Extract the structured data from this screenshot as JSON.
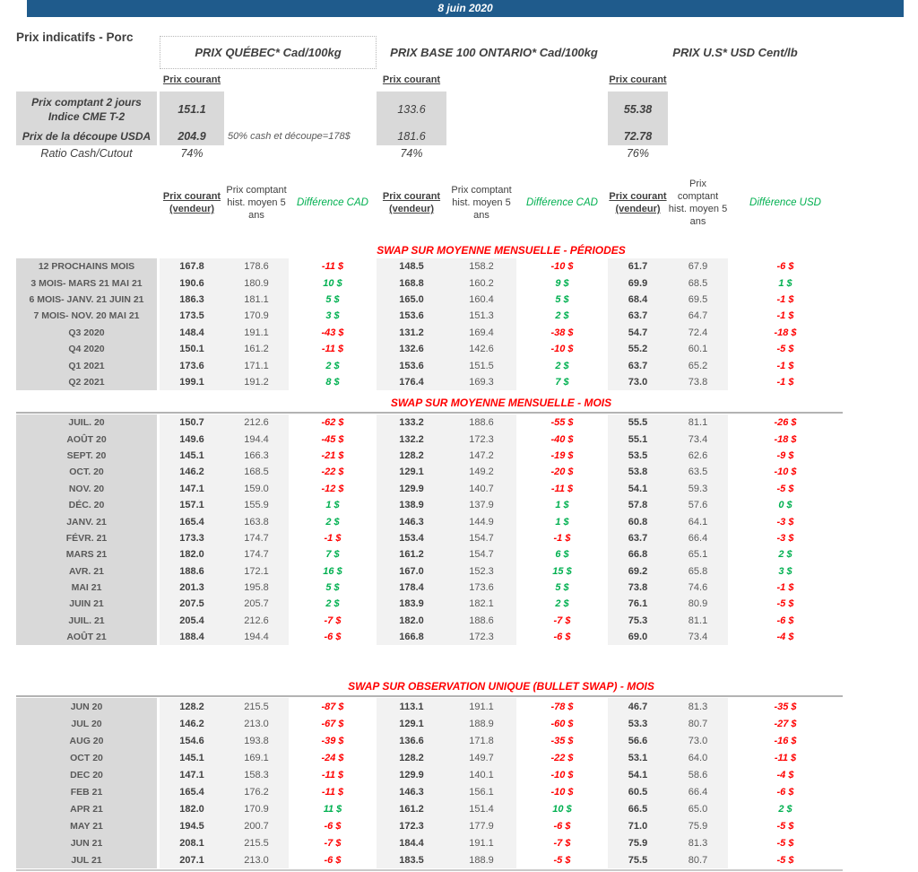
{
  "banner": {
    "date": "8 juin 2020",
    "bg_color": "#1f5b8c"
  },
  "page_title": "Prix indicatifs - Porc",
  "groups": [
    {
      "title": "PRIX QUÉBEC* Cad/100kg"
    },
    {
      "title": "PRIX BASE 100 ONTARIO* Cad/100kg"
    },
    {
      "title": "PRIX U.S* USD Cent/lb"
    }
  ],
  "spot": {
    "col_header": "Prix courant",
    "rows": [
      {
        "label_line1": "Prix comptant 2 jours",
        "label_line2": "Indice CME T-2",
        "quebec": "151.1",
        "ontario": "133.6",
        "us": "55.38"
      },
      {
        "label": "Prix de la découpe USDA",
        "note": "50% cash et découpe=178$",
        "quebec": "204.9",
        "ontario": "181.6",
        "us": "72.78"
      },
      {
        "label": "Ratio Cash/Cutout",
        "quebec": "74%",
        "ontario": "74%",
        "us": "76%"
      }
    ]
  },
  "column_headers": {
    "prix_courant_vendeur": "Prix courant (vendeur)",
    "prix_comptant_hist": "Prix comptant hist. moyen 5 ans",
    "difference_cad": "Différence CAD",
    "difference_usd": "Différence USD"
  },
  "colors": {
    "red": "#ff0000",
    "green": "#00b050",
    "label_bg": "#d9d9d9",
    "band_bg": "#f2f2f2"
  },
  "sections": [
    {
      "title": "SWAP SUR MOYENNE MENSUELLE - PÉRIODES",
      "rule_below": false,
      "rows": [
        [
          "12 PROCHAINS MOIS",
          "167.8",
          "178.6",
          "-11 $",
          "148.5",
          "158.2",
          "-10 $",
          "61.7",
          "67.9",
          "-6 $"
        ],
        [
          "3 MOIS- MARS 21 MAI 21",
          "190.6",
          "180.9",
          "10 $",
          "168.8",
          "160.2",
          "9 $",
          "69.9",
          "68.5",
          "1 $"
        ],
        [
          "6 MOIS- JANV. 21 JUIN 21",
          "186.3",
          "181.1",
          "5 $",
          "165.0",
          "160.4",
          "5 $",
          "68.4",
          "69.5",
          "-1 $"
        ],
        [
          "7 MOIS- NOV. 20 MAI 21",
          "173.5",
          "170.9",
          "3 $",
          "153.6",
          "151.3",
          "2 $",
          "63.7",
          "64.7",
          "-1 $"
        ],
        [
          "Q3 2020",
          "148.4",
          "191.1",
          "-43 $",
          "131.2",
          "169.4",
          "-38 $",
          "54.7",
          "72.4",
          "-18 $"
        ],
        [
          "Q4 2020",
          "150.1",
          "161.2",
          "-11 $",
          "132.6",
          "142.6",
          "-10 $",
          "55.2",
          "60.1",
          "-5 $"
        ],
        [
          "Q1 2021",
          "173.6",
          "171.1",
          "2 $",
          "153.6",
          "151.5",
          "2 $",
          "63.7",
          "65.2",
          "-1 $"
        ],
        [
          "Q2 2021",
          "199.1",
          "191.2",
          "8 $",
          "176.4",
          "169.3",
          "7 $",
          "73.0",
          "73.8",
          "-1 $"
        ]
      ]
    },
    {
      "title": "SWAP SUR MOYENNE MENSUELLE - MOIS",
      "rule_below": true,
      "rows": [
        [
          "JUIL. 20",
          "150.7",
          "212.6",
          "-62 $",
          "133.2",
          "188.6",
          "-55 $",
          "55.5",
          "81.1",
          "-26 $"
        ],
        [
          "AOÛT 20",
          "149.6",
          "194.4",
          "-45 $",
          "132.2",
          "172.3",
          "-40 $",
          "55.1",
          "73.4",
          "-18 $"
        ],
        [
          "SEPT. 20",
          "145.1",
          "166.3",
          "-21 $",
          "128.2",
          "147.2",
          "-19 $",
          "53.5",
          "62.6",
          "-9 $"
        ],
        [
          "OCT. 20",
          "146.2",
          "168.5",
          "-22 $",
          "129.1",
          "149.2",
          "-20 $",
          "53.8",
          "63.5",
          "-10 $"
        ],
        [
          "NOV. 20",
          "147.1",
          "159.0",
          "-12 $",
          "129.9",
          "140.7",
          "-11 $",
          "54.1",
          "59.3",
          "-5 $"
        ],
        [
          "DÉC. 20",
          "157.1",
          "155.9",
          "1 $",
          "138.9",
          "137.9",
          "1 $",
          "57.8",
          "57.6",
          "0 $"
        ],
        [
          "JANV. 21",
          "165.4",
          "163.8",
          "2 $",
          "146.3",
          "144.9",
          "1 $",
          "60.8",
          "64.1",
          "-3 $"
        ],
        [
          "FÉVR. 21",
          "173.3",
          "174.7",
          "-1 $",
          "153.4",
          "154.7",
          "-1 $",
          "63.7",
          "66.4",
          "-3 $"
        ],
        [
          "MARS 21",
          "182.0",
          "174.7",
          "7 $",
          "161.2",
          "154.7",
          "6 $",
          "66.8",
          "65.1",
          "2 $"
        ],
        [
          "AVR. 21",
          "188.6",
          "172.1",
          "16 $",
          "167.0",
          "152.3",
          "15 $",
          "69.2",
          "65.8",
          "3 $"
        ],
        [
          "MAI 21",
          "201.3",
          "195.8",
          "5 $",
          "178.4",
          "173.6",
          "5 $",
          "73.8",
          "74.6",
          "-1 $"
        ],
        [
          "JUIN 21",
          "207.5",
          "205.7",
          "2 $",
          "183.9",
          "182.1",
          "2 $",
          "76.1",
          "80.9",
          "-5 $"
        ],
        [
          "JUIL. 21",
          "205.4",
          "212.6",
          "-7 $",
          "182.0",
          "188.6",
          "-7 $",
          "75.3",
          "81.1",
          "-6 $"
        ],
        [
          "AOÛT 21",
          "188.4",
          "194.4",
          "-6 $",
          "166.8",
          "172.3",
          "-6 $",
          "69.0",
          "73.4",
          "-4 $"
        ]
      ]
    },
    {
      "title": "SWAP SUR OBSERVATION UNIQUE (BULLET SWAP) - MOIS",
      "rule_below": true,
      "rows": [
        [
          "JUN 20",
          "128.2",
          "215.5",
          "-87 $",
          "113.1",
          "191.1",
          "-78 $",
          "46.7",
          "81.3",
          "-35 $"
        ],
        [
          "JUL 20",
          "146.2",
          "213.0",
          "-67 $",
          "129.1",
          "188.9",
          "-60 $",
          "53.3",
          "80.7",
          "-27 $"
        ],
        [
          "AUG 20",
          "154.6",
          "193.8",
          "-39 $",
          "136.6",
          "171.8",
          "-35 $",
          "56.6",
          "73.0",
          "-16 $"
        ],
        [
          "OCT 20",
          "145.1",
          "169.1",
          "-24 $",
          "128.2",
          "149.7",
          "-22 $",
          "53.1",
          "64.0",
          "-11 $"
        ],
        [
          "DEC 20",
          "147.1",
          "158.3",
          "-11 $",
          "129.9",
          "140.1",
          "-10 $",
          "54.1",
          "58.6",
          "-4 $"
        ],
        [
          "FEB 21",
          "165.4",
          "176.2",
          "-11 $",
          "146.3",
          "156.1",
          "-10 $",
          "60.5",
          "66.4",
          "-6 $"
        ],
        [
          "APR 21",
          "182.0",
          "170.9",
          "11 $",
          "161.2",
          "151.4",
          "10 $",
          "66.5",
          "65.0",
          "2 $"
        ],
        [
          "MAY 21",
          "194.5",
          "200.7",
          "-6 $",
          "172.3",
          "177.9",
          "-6 $",
          "71.0",
          "75.9",
          "-5 $"
        ],
        [
          "JUN 21",
          "208.1",
          "215.5",
          "-7 $",
          "184.4",
          "191.1",
          "-7 $",
          "75.9",
          "81.3",
          "-5 $"
        ],
        [
          "JUL 21",
          "207.1",
          "213.0",
          "-6 $",
          "183.5",
          "188.9",
          "-5 $",
          "75.5",
          "80.7",
          "-5 $"
        ]
      ]
    }
  ]
}
